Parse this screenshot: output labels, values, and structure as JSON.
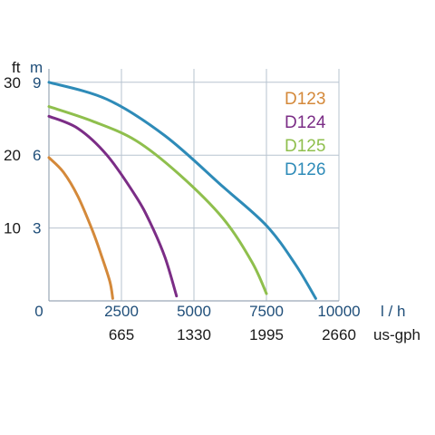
{
  "chart_data": {
    "type": "line",
    "axes": {
      "y_units": [
        "ft",
        "m"
      ],
      "y_ticks_ft": [
        "30",
        "20",
        "10"
      ],
      "y_ticks_m": [
        "9",
        "6",
        "3"
      ],
      "y_tick_values_m": [
        9,
        6,
        3
      ],
      "ylim_m": [
        0,
        10
      ],
      "x_unit_primary": "l / h",
      "x_unit_secondary": "us-gph",
      "x_ticks_primary": [
        "0",
        "2500",
        "5000",
        "7500",
        "10000"
      ],
      "x_tick_values": [
        0,
        2500,
        5000,
        7500,
        10000
      ],
      "x_ticks_secondary": [
        "665",
        "1330",
        "1995",
        "2660"
      ],
      "x_ticks_secondary_values": [
        2500,
        5000,
        7500,
        10000
      ],
      "xlim": [
        0,
        10000
      ],
      "grid": true
    },
    "legend_position": "top-right",
    "series": [
      {
        "name": "D123",
        "color": "#d4893a",
        "x": [
          0,
          500,
          1000,
          1500,
          1800,
          2100,
          2200
        ],
        "y": [
          5.9,
          5.3,
          4.3,
          2.9,
          1.9,
          0.8,
          0.1
        ]
      },
      {
        "name": "D124",
        "color": "#7b2d86",
        "x": [
          0,
          1000,
          2000,
          3000,
          3500,
          4000,
          4400
        ],
        "y": [
          7.6,
          7.1,
          6.0,
          4.3,
          3.2,
          1.8,
          0.2
        ]
      },
      {
        "name": "D125",
        "color": "#8fbf4d",
        "x": [
          0,
          1500,
          3000,
          4500,
          6000,
          7000,
          7500
        ],
        "y": [
          8.0,
          7.4,
          6.6,
          5.2,
          3.4,
          1.6,
          0.3
        ]
      },
      {
        "name": "D126",
        "color": "#2e8bb8",
        "x": [
          0,
          2000,
          4000,
          6000,
          7500,
          8500,
          9200
        ],
        "y": [
          9.0,
          8.3,
          6.8,
          4.7,
          3.1,
          1.5,
          0.1
        ]
      }
    ]
  }
}
